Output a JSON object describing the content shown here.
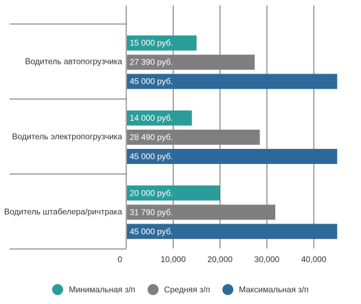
{
  "chart_data": {
    "type": "bar",
    "orientation": "horizontal",
    "categories": [
      "Водитель автопогрузчика",
      "Водитель электропогрузчика",
      "Водитель штабелера/ричтрака"
    ],
    "series": [
      {
        "name": "Минимальная з/п",
        "color": "#2a9d9a",
        "values": [
          15000,
          14000,
          20000
        ],
        "labels": [
          "15 000 руб.",
          "14 000 руб.",
          "20 000 руб."
        ]
      },
      {
        "name": "Средняя з/п",
        "color": "#7f7f7f",
        "values": [
          27390,
          28490,
          31790
        ],
        "labels": [
          "27 390 руб.",
          "28 490 руб.",
          "31 790 руб."
        ]
      },
      {
        "name": "Максимальная з/п",
        "color": "#2e6a99",
        "values": [
          45000,
          45000,
          45000
        ],
        "labels": [
          "45 000 руб.",
          "45 000 руб.",
          "45 000 руб."
        ]
      }
    ],
    "xlim": [
      0,
      47000
    ],
    "x_ticks": [
      0,
      10000,
      20000,
      30000,
      40000
    ],
    "x_tick_labels": [
      "0",
      "10,000",
      "20,000",
      "30,000",
      "40,000"
    ],
    "grid": true,
    "legend_position": "bottom",
    "title": "",
    "xlabel": "",
    "ylabel": ""
  }
}
